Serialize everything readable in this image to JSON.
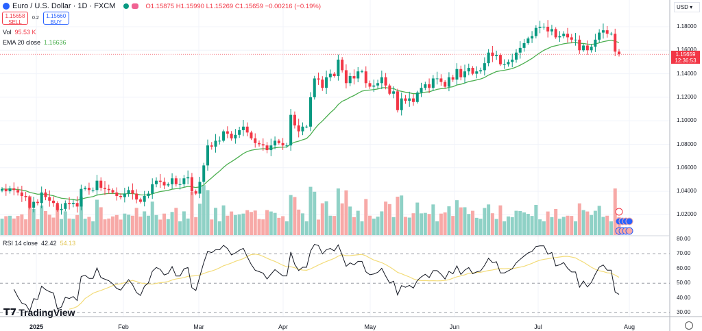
{
  "header": {
    "symbol": "Euro / U.S. Dollar · 1D · FXCM",
    "ohlc": "O1.15875 H1.15990 L1.15269 C1.15659 −0.00216 (−0.19%)"
  },
  "trade": {
    "sell_price": "1.15658",
    "sell_label": "SELL",
    "spread": "0.2",
    "buy_price": "1.15660",
    "buy_label": "BUY"
  },
  "indicators": {
    "vol_label": "Vol",
    "vol_value": "95.53 K",
    "ema_label": "EMA 20 close",
    "ema_value": "1.16636",
    "rsi_label": "RSI 14 close",
    "rsi_value": "42.42",
    "rsi_ma_value": "54.13"
  },
  "axis": {
    "currency": "USD",
    "price_labels": [
      "1.18000",
      "1.16000",
      "1.14000",
      "1.12000",
      "1.10000",
      "1.08000",
      "1.06000",
      "1.04000",
      "1.02000"
    ],
    "rsi_labels": [
      "80.00",
      "70.00",
      "60.00",
      "50.00",
      "40.00",
      "30.00"
    ],
    "time_labels": [
      "2025",
      "Feb",
      "Mar",
      "Apr",
      "May",
      "Jun",
      "Jul",
      "Aug"
    ]
  },
  "last_price": {
    "price": "1.15659",
    "countdown": "12:36:53"
  },
  "brand": "TradingView",
  "colors": {
    "up": "#089981",
    "down": "#f23645",
    "ema": "#4caf50",
    "rsi": "#131722",
    "rsi_ma": "#f3dc7a"
  },
  "chart_data": {
    "type": "candlestick",
    "price_range": [
      1.0,
      1.19
    ],
    "first_open": 1.0405,
    "closes": [
      1.042,
      1.04,
      1.0425,
      1.041,
      1.039,
      1.036,
      1.035,
      1.026,
      1.031,
      1.03,
      1.039,
      1.035,
      1.032,
      1.03,
      1.024,
      1.025,
      1.03,
      1.029,
      1.03,
      1.027,
      1.042,
      1.043,
      1.041,
      1.041,
      1.049,
      1.043,
      1.042,
      1.041,
      1.039,
      1.036,
      1.035,
      1.038,
      1.041,
      1.038,
      1.033,
      1.031,
      1.036,
      1.038,
      1.046,
      1.049,
      1.048,
      1.045,
      1.046,
      1.051,
      1.046,
      1.046,
      1.051,
      1.052,
      1.04,
      1.038,
      1.048,
      1.062,
      1.079,
      1.078,
      1.083,
      1.083,
      1.091,
      1.089,
      1.085,
      1.088,
      1.092,
      1.095,
      1.09,
      1.085,
      1.081,
      1.08,
      1.079,
      1.075,
      1.079,
      1.083,
      1.081,
      1.079,
      1.079,
      1.105,
      1.096,
      1.091,
      1.095,
      1.095,
      1.12,
      1.136,
      1.135,
      1.128,
      1.137,
      1.14,
      1.138,
      1.152,
      1.143,
      1.132,
      1.138,
      1.136,
      1.142,
      1.142,
      1.132,
      1.129,
      1.13,
      1.132,
      1.137,
      1.13,
      1.123,
      1.125,
      1.109,
      1.119,
      1.117,
      1.119,
      1.116,
      1.124,
      1.128,
      1.131,
      1.128,
      1.136,
      1.136,
      1.133,
      1.129,
      1.137,
      1.135,
      1.144,
      1.137,
      1.142,
      1.145,
      1.14,
      1.142,
      1.143,
      1.149,
      1.158,
      1.155,
      1.156,
      1.148,
      1.148,
      1.15,
      1.152,
      1.158,
      1.162,
      1.166,
      1.17,
      1.172,
      1.179,
      1.18,
      1.18,
      1.176,
      1.178,
      1.171,
      1.172,
      1.174,
      1.171,
      1.169,
      1.169,
      1.16,
      1.164,
      1.16,
      1.163,
      1.169,
      1.175,
      1.177,
      1.174,
      1.174,
      1.1588,
      1.1566
    ]
  }
}
